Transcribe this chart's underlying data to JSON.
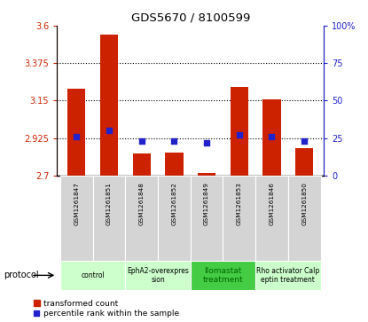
{
  "title": "GDS5670 / 8100599",
  "samples": [
    "GSM1261847",
    "GSM1261851",
    "GSM1261848",
    "GSM1261852",
    "GSM1261849",
    "GSM1261853",
    "GSM1261846",
    "GSM1261850"
  ],
  "bar_bottoms": [
    2.7,
    2.7,
    2.7,
    2.7,
    2.7,
    2.7,
    2.7,
    2.7
  ],
  "bar_tops": [
    3.22,
    3.545,
    2.835,
    2.84,
    2.715,
    3.23,
    3.155,
    2.865
  ],
  "percentile_ranks": [
    26,
    30,
    23,
    23,
    22,
    27,
    26,
    23
  ],
  "ylim_left": [
    2.7,
    3.6
  ],
  "ylim_right": [
    0,
    100
  ],
  "yticks_left": [
    2.7,
    2.925,
    3.15,
    3.375,
    3.6
  ],
  "yticks_right": [
    0,
    25,
    50,
    75,
    100
  ],
  "ytick_labels_left": [
    "2.7",
    "2.925",
    "3.15",
    "3.375",
    "3.6"
  ],
  "ytick_labels_right": [
    "0",
    "25",
    "50",
    "75",
    "100%"
  ],
  "bar_color": "#cc2200",
  "dot_color": "#2222cc",
  "proto_spans": [
    [
      0,
      1,
      "control",
      "#ccffcc"
    ],
    [
      2,
      3,
      "EphA2-overexpres\nsion",
      "#ccffcc"
    ],
    [
      4,
      5,
      "Ilomastat\ntreatment",
      "#44cc44"
    ],
    [
      6,
      7,
      "Rho activator Calp\neptin treatment",
      "#ccffcc"
    ]
  ],
  "legend_labels": [
    "transformed count",
    "percentile rank within the sample"
  ],
  "background_color": "#ffffff"
}
